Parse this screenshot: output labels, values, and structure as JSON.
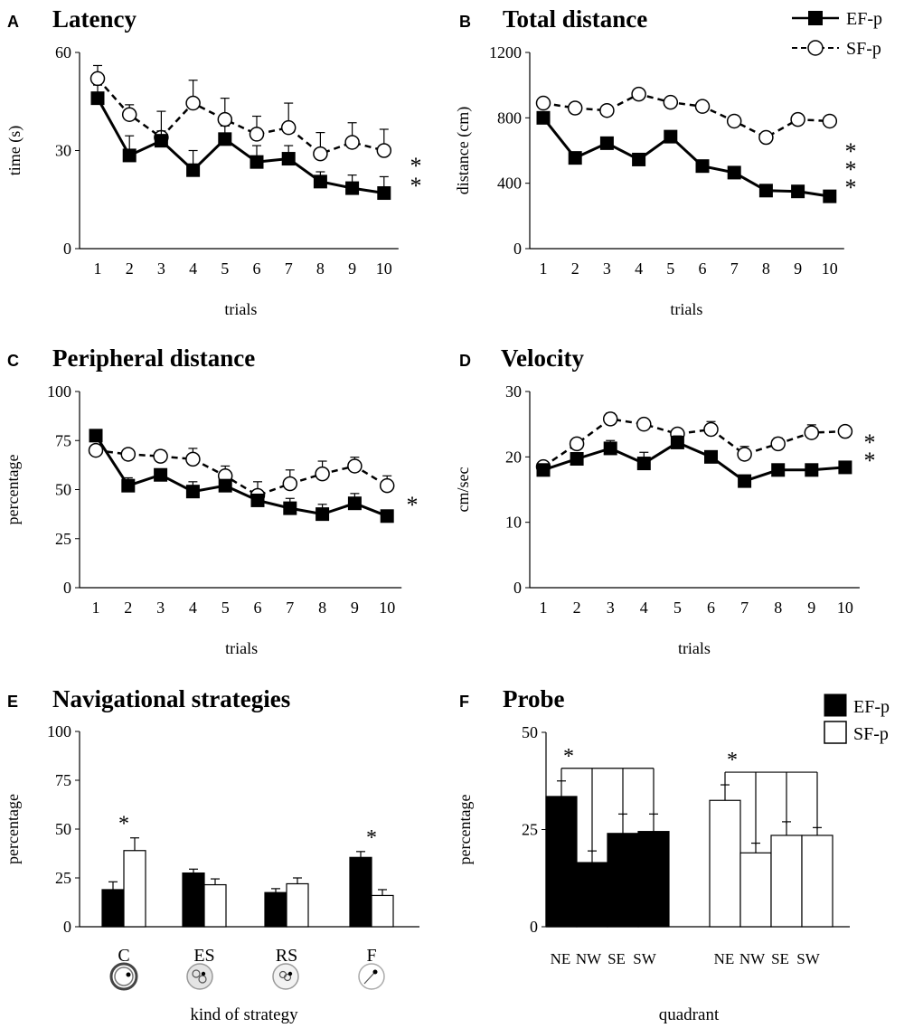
{
  "colors": {
    "ink": "#000000",
    "filled": "#000000",
    "open": "#ffffff",
    "background": "#ffffff"
  },
  "legend_top": {
    "items": [
      {
        "label": "EF-p",
        "marker": "filled-square"
      },
      {
        "label": "SF-p",
        "marker": "open-circle"
      }
    ]
  },
  "legend_bottom": {
    "items": [
      {
        "label": "EF-p",
        "swatch": "filled"
      },
      {
        "label": "SF-p",
        "swatch": "open"
      }
    ]
  },
  "chart_data": [
    {
      "panel": "A",
      "type": "line",
      "title": "Latency",
      "xlabel": "trials",
      "ylabel": "time (s)",
      "ylim": [
        0,
        60
      ],
      "yticks": [
        "0",
        "30",
        "60"
      ],
      "categories": [
        "1",
        "2",
        "3",
        "4",
        "5",
        "6",
        "7",
        "8",
        "9",
        "10"
      ],
      "series": [
        {
          "name": "EF-p",
          "marker": "square",
          "line": "solid",
          "values": [
            46,
            28.5,
            33,
            24,
            33.5,
            26.5,
            27.5,
            20.5,
            18.5,
            17
          ],
          "errors": [
            4,
            6,
            3,
            6,
            4,
            5,
            4,
            3,
            4,
            5
          ]
        },
        {
          "name": "SF-p",
          "marker": "circle",
          "line": "dashed",
          "values": [
            52,
            41,
            34,
            44.5,
            39.5,
            35,
            37,
            29,
            32.5,
            30
          ],
          "errors": [
            4,
            3,
            8,
            7,
            6.5,
            5.5,
            7.5,
            6.5,
            6,
            6.5
          ]
        }
      ],
      "significance": "**"
    },
    {
      "panel": "B",
      "type": "line",
      "title": "Total distance",
      "xlabel": "trials",
      "ylabel": "distance (cm)",
      "ylim": [
        0,
        1200
      ],
      "yticks": [
        "0",
        "400",
        "800",
        "1200"
      ],
      "categories": [
        "1",
        "2",
        "3",
        "4",
        "5",
        "6",
        "7",
        "8",
        "9",
        "10"
      ],
      "series": [
        {
          "name": "EF-p",
          "marker": "square",
          "line": "solid",
          "values": [
            800,
            555,
            645,
            545,
            685,
            505,
            465,
            355,
            350,
            320
          ],
          "errors": [
            0,
            0,
            0,
            0,
            0,
            0,
            0,
            0,
            0,
            0
          ]
        },
        {
          "name": "SF-p",
          "marker": "circle",
          "line": "dashed",
          "values": [
            890,
            860,
            845,
            945,
            895,
            870,
            780,
            680,
            790,
            780
          ],
          "errors": [
            0,
            0,
            0,
            0,
            0,
            0,
            0,
            0,
            0,
            0
          ]
        }
      ],
      "significance": "***"
    },
    {
      "panel": "C",
      "type": "line",
      "title": "Peripheral distance",
      "xlabel": "trials",
      "ylabel": "percentage",
      "ylim": [
        0,
        100
      ],
      "yticks": [
        "0",
        "25",
        "50",
        "75",
        "100"
      ],
      "categories": [
        "1",
        "2",
        "3",
        "4",
        "5",
        "6",
        "7",
        "8",
        "9",
        "10"
      ],
      "series": [
        {
          "name": "EF-p",
          "marker": "square",
          "line": "solid",
          "values": [
            77.5,
            52,
            57.5,
            49,
            52,
            44.5,
            40.5,
            37.5,
            43,
            36.5
          ],
          "errors": [
            2,
            4,
            3,
            5,
            3,
            3,
            5,
            5,
            5,
            3
          ]
        },
        {
          "name": "SF-p",
          "marker": "circle",
          "line": "dashed",
          "values": [
            70,
            68,
            67,
            65.5,
            57,
            47,
            53,
            58,
            62,
            52
          ],
          "errors": [
            2,
            2,
            3,
            5.5,
            5,
            7,
            7,
            6.5,
            4.5,
            5
          ]
        }
      ],
      "significance": "*"
    },
    {
      "panel": "D",
      "type": "line",
      "title": "Velocity",
      "xlabel": "trials",
      "ylabel": "cm/sec",
      "ylim": [
        0,
        30
      ],
      "yticks": [
        "0",
        "10",
        "20",
        "30"
      ],
      "categories": [
        "1",
        "2",
        "3",
        "4",
        "5",
        "6",
        "7",
        "8",
        "9",
        "10"
      ],
      "series": [
        {
          "name": "EF-p",
          "marker": "square",
          "line": "solid",
          "values": [
            18,
            19.7,
            21.3,
            19,
            22.2,
            20,
            16.3,
            18,
            18,
            18.4
          ],
          "errors": [
            0.6,
            0.9,
            1.2,
            1.7,
            1.0,
            0.9,
            0.6,
            0.8,
            0.8,
            0.6
          ]
        },
        {
          "name": "SF-p",
          "marker": "circle",
          "line": "dashed",
          "values": [
            18.5,
            22,
            25.8,
            25,
            23.5,
            24.2,
            20.4,
            22,
            23.7,
            23.9
          ],
          "errors": [
            0.6,
            0.6,
            0.9,
            0.7,
            0.6,
            1.2,
            1.2,
            0.9,
            1.2,
            0.5
          ]
        }
      ],
      "significance": "**"
    },
    {
      "panel": "E",
      "type": "bar",
      "title": "Navigational strategies",
      "xlabel": "kind of  strategy",
      "ylabel": "percentage",
      "ylim": [
        0,
        100
      ],
      "yticks": [
        "0",
        "25",
        "50",
        "75",
        "100"
      ],
      "categories": [
        "C",
        "ES",
        "RS",
        "F"
      ],
      "series": [
        {
          "name": "EF-p",
          "fill": "filled",
          "values": [
            19,
            27.5,
            17.5,
            35.5
          ],
          "errors": [
            4,
            2,
            2,
            3
          ]
        },
        {
          "name": "SF-p",
          "fill": "open",
          "values": [
            39,
            21.5,
            22,
            16
          ],
          "errors": [
            6.5,
            3,
            3,
            3
          ]
        }
      ],
      "significance_marks": [
        {
          "category": "C",
          "mark": "*"
        },
        {
          "category": "F",
          "mark": "*"
        }
      ]
    },
    {
      "panel": "F",
      "type": "bar",
      "title": "Probe",
      "xlabel": "quadrant",
      "ylabel": "percentage",
      "ylim": [
        0,
        50
      ],
      "yticks": [
        "0",
        "25",
        "50"
      ],
      "groups": [
        {
          "name": "EF-p",
          "fill": "filled",
          "categories": [
            "NE",
            "NW",
            "SE",
            "SW"
          ],
          "values": [
            33.5,
            16.5,
            24,
            24.5
          ],
          "errors": [
            4,
            3,
            5,
            4.5
          ],
          "significance": "*"
        },
        {
          "name": "SF-p",
          "fill": "open",
          "categories": [
            "NE",
            "NW",
            "SE",
            "SW"
          ],
          "values": [
            32.5,
            19,
            23.5,
            23.5
          ],
          "errors": [
            4,
            2.5,
            3.5,
            2
          ],
          "significance": "*"
        }
      ]
    }
  ]
}
